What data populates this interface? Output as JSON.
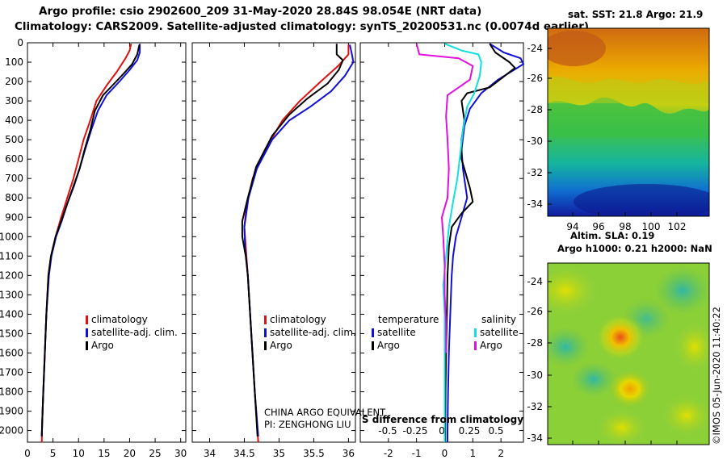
{
  "title_line1": "Argo profile: csio 2902600_209 31-May-2020 28.84S 98.054E (NRT data)",
  "title_line2": "Climatology: CARS2009. Satellite-adjusted climatology: synTS_20200531.nc (0.0074d earlier)",
  "sat_sst_title": "sat. SST: 21.8 Argo: 21.9",
  "altim_title_line1": "Altim. SLA: 0.19",
  "altim_title_line2": "Argo h1000: 0.21 h2000: NaN",
  "credit_line1": "CHINA ARGO EQUIVALENT",
  "credit_line2": "PI: ZENGHONG LIU",
  "stamp": "©IMOS 05-Jun-2020 11:40:22",
  "colors": {
    "climatology": "#e01010",
    "satellite": "#1010d8",
    "argo": "#000000",
    "sat_salinity": "#10e0e0",
    "argo_salinity": "#e010e0"
  },
  "depth_ticks": [
    "0",
    "100",
    "200",
    "300",
    "400",
    "500",
    "600",
    "700",
    "800",
    "900",
    "1000",
    "1100",
    "1200",
    "1300",
    "1400",
    "1500",
    "1600",
    "1700",
    "1800",
    "1900",
    "2000"
  ],
  "chart_data": [
    {
      "type": "line",
      "panel": "temperature",
      "x_ticks": [
        "0",
        "5",
        "10",
        "15",
        "20",
        "25",
        "30"
      ],
      "xlim": [
        0,
        31
      ],
      "ylim": [
        2060,
        0
      ],
      "legend": [
        "climatology",
        "satellite-adj. clim.",
        "Argo"
      ],
      "series": [
        {
          "name": "climatology",
          "color": "#e01010",
          "points": [
            [
              20.3,
              5
            ],
            [
              20,
              40
            ],
            [
              19.2,
              80
            ],
            [
              17.5,
              150
            ],
            [
              15.5,
              220
            ],
            [
              13.5,
              300
            ],
            [
              12.3,
              400
            ],
            [
              11,
              500
            ],
            [
              10,
              600
            ],
            [
              9,
              700
            ],
            [
              7.8,
              800
            ],
            [
              6.6,
              900
            ],
            [
              5.5,
              1000
            ],
            [
              4.6,
              1100
            ],
            [
              4.1,
              1200
            ],
            [
              3.7,
              1400
            ],
            [
              3.4,
              1600
            ],
            [
              3.1,
              1800
            ],
            [
              2.9,
              1950
            ],
            [
              2.8,
              2060
            ]
          ]
        },
        {
          "name": "satellite-adj. clim.",
          "color": "#1010d8",
          "points": [
            [
              22,
              5
            ],
            [
              22,
              50
            ],
            [
              21.5,
              90
            ],
            [
              20,
              140
            ],
            [
              18,
              200
            ],
            [
              15.5,
              270
            ],
            [
              13.8,
              350
            ],
            [
              12.5,
              450
            ],
            [
              11.3,
              550
            ],
            [
              10.2,
              650
            ],
            [
              9.1,
              740
            ],
            [
              7.8,
              830
            ],
            [
              6.7,
              920
            ],
            [
              5.6,
              1000
            ],
            [
              4.7,
              1100
            ],
            [
              4.2,
              1200
            ],
            [
              3.7,
              1400
            ],
            [
              3.4,
              1600
            ],
            [
              3.1,
              1800
            ],
            [
              2.9,
              1950
            ],
            [
              2.8,
              2030
            ]
          ]
        },
        {
          "name": "Argo",
          "color": "#000000",
          "points": [
            [
              21.9,
              10
            ],
            [
              21.5,
              60
            ],
            [
              20.5,
              110
            ],
            [
              18.8,
              160
            ],
            [
              17,
              210
            ],
            [
              14.8,
              270
            ],
            [
              13.2,
              350
            ],
            [
              12.3,
              450
            ],
            [
              11.2,
              550
            ],
            [
              10.2,
              650
            ],
            [
              9,
              740
            ],
            [
              7.8,
              830
            ],
            [
              6.6,
              920
            ],
            [
              5.5,
              1000
            ],
            [
              4.6,
              1100
            ],
            [
              4.1,
              1200
            ],
            [
              3.7,
              1400
            ],
            [
              3.4,
              1600
            ],
            [
              3.1,
              1800
            ],
            [
              2.9,
              1950
            ],
            [
              2.8,
              2030
            ]
          ]
        }
      ]
    },
    {
      "type": "line",
      "panel": "salinity",
      "x_ticks": [
        "34",
        "34.5",
        "35",
        "35.5",
        "36"
      ],
      "xlim": [
        33.75,
        36.1
      ],
      "ylim": [
        2060,
        0
      ],
      "legend": [
        "climatology",
        "satellite-adj. clim.",
        "Argo"
      ],
      "series": [
        {
          "name": "climatology",
          "color": "#e01010",
          "points": [
            [
              36.0,
              10
            ],
            [
              36.0,
              60
            ],
            [
              35.85,
              120
            ],
            [
              35.6,
              200
            ],
            [
              35.3,
              300
            ],
            [
              35.05,
              400
            ],
            [
              34.8,
              550
            ],
            [
              34.62,
              700
            ],
            [
              34.53,
              850
            ],
            [
              34.5,
              950
            ],
            [
              34.52,
              1050
            ],
            [
              34.55,
              1200
            ],
            [
              34.6,
              1500
            ],
            [
              34.65,
              1800
            ],
            [
              34.7,
              2060
            ]
          ]
        },
        {
          "name": "satellite-adj. clim.",
          "color": "#1010d8",
          "points": [
            [
              36.02,
              10
            ],
            [
              36.05,
              60
            ],
            [
              36.07,
              100
            ],
            [
              35.95,
              170
            ],
            [
              35.75,
              250
            ],
            [
              35.45,
              330
            ],
            [
              35.15,
              400
            ],
            [
              34.9,
              500
            ],
            [
              34.68,
              650
            ],
            [
              34.56,
              800
            ],
            [
              34.5,
              950
            ],
            [
              34.51,
              1050
            ],
            [
              34.55,
              1200
            ],
            [
              34.6,
              1500
            ],
            [
              34.65,
              1800
            ],
            [
              34.7,
              2030
            ]
          ]
        },
        {
          "name": "Argo",
          "color": "#000000",
          "points": [
            [
              35.83,
              5
            ],
            [
              35.83,
              60
            ],
            [
              35.92,
              90
            ],
            [
              35.86,
              140
            ],
            [
              35.7,
              210
            ],
            [
              35.4,
              290
            ],
            [
              35.15,
              370
            ],
            [
              34.9,
              480
            ],
            [
              34.67,
              640
            ],
            [
              34.55,
              800
            ],
            [
              34.47,
              920
            ],
            [
              34.47,
              1000
            ],
            [
              34.52,
              1100
            ],
            [
              34.55,
              1200
            ],
            [
              34.6,
              1500
            ],
            [
              34.65,
              1800
            ],
            [
              34.69,
              2030
            ]
          ]
        }
      ]
    },
    {
      "type": "line",
      "panel": "difference",
      "x_ticks": [
        "-2",
        "-1",
        "0",
        "1",
        "2"
      ],
      "x_ticks_salinity": [
        "-0.5",
        "-0.25",
        "0",
        "0.25",
        "0.5"
      ],
      "xlabel": "S difference from climatology",
      "xlim": [
        -3,
        2.8
      ],
      "ylim": [
        2060,
        0
      ],
      "legend_groups": [
        {
          "heading": "temperature",
          "items": [
            "satellite",
            "Argo"
          ]
        },
        {
          "heading": "salinity",
          "items": [
            "satellite",
            "Argo"
          ]
        }
      ],
      "series": [
        {
          "name": "temperature satellite",
          "color": "#1010d8",
          "points": [
            [
              1.6,
              5
            ],
            [
              2.1,
              50
            ],
            [
              2.7,
              80
            ],
            [
              2.8,
              110
            ],
            [
              1.9,
              190
            ],
            [
              1.3,
              260
            ],
            [
              0.9,
              340
            ],
            [
              0.7,
              430
            ],
            [
              0.6,
              550
            ],
            [
              0.65,
              650
            ],
            [
              0.8,
              800
            ],
            [
              0.6,
              900
            ],
            [
              0.4,
              1000
            ],
            [
              0.3,
              1100
            ],
            [
              0.25,
              1200
            ],
            [
              0.2,
              1400
            ],
            [
              0.15,
              1600
            ],
            [
              0.12,
              1800
            ],
            [
              0.1,
              2000
            ],
            [
              0.1,
              2060
            ]
          ]
        },
        {
          "name": "temperature Argo",
          "color": "#000000",
          "points": [
            [
              1.6,
              5
            ],
            [
              1.8,
              50
            ],
            [
              2.3,
              100
            ],
            [
              2.5,
              130
            ],
            [
              1.6,
              230
            ],
            [
              0.8,
              260
            ],
            [
              0.6,
              300
            ],
            [
              0.7,
              400
            ],
            [
              0.6,
              500
            ],
            [
              0.6,
              600
            ],
            [
              0.9,
              750
            ],
            [
              1.0,
              820
            ],
            [
              0.6,
              880
            ],
            [
              0.25,
              950
            ],
            [
              0.15,
              1050
            ],
            [
              0.1,
              1200
            ],
            [
              0.08,
              1400
            ],
            [
              0.05,
              1600
            ],
            [
              0.03,
              1800
            ],
            [
              0.02,
              2000
            ],
            [
              0.02,
              2060
            ]
          ]
        },
        {
          "name": "salinity satellite",
          "color": "#10e0e0",
          "points": [
            [
              0,
              5
            ],
            [
              0.6,
              40
            ],
            [
              1.2,
              60
            ],
            [
              1.3,
              100
            ],
            [
              1.25,
              170
            ],
            [
              1.05,
              260
            ],
            [
              0.8,
              330
            ],
            [
              0.65,
              450
            ],
            [
              0.55,
              580
            ],
            [
              0.45,
              700
            ],
            [
              0.3,
              820
            ],
            [
              0.15,
              950
            ],
            [
              0.05,
              1100
            ],
            [
              -0.05,
              1250
            ],
            [
              0,
              1400
            ],
            [
              0,
              1600
            ],
            [
              0,
              1800
            ],
            [
              0,
              2000
            ],
            [
              0,
              2060
            ]
          ]
        },
        {
          "name": "salinity Argo",
          "color": "#e010e0",
          "points": [
            [
              -1.0,
              5
            ],
            [
              -0.9,
              60
            ],
            [
              0.5,
              80
            ],
            [
              1.0,
              120
            ],
            [
              0.9,
              190
            ],
            [
              0.1,
              270
            ],
            [
              0.05,
              380
            ],
            [
              0.1,
              500
            ],
            [
              0.15,
              650
            ],
            [
              0.1,
              800
            ],
            [
              -0.1,
              900
            ],
            [
              -0.05,
              1000
            ],
            [
              0,
              1150
            ],
            [
              0,
              1300
            ],
            [
              0.05,
              1450
            ],
            [
              0.05,
              1600
            ]
          ]
        }
      ]
    },
    {
      "type": "heatmap",
      "panel": "satellite SST map",
      "x_ticks": [
        "94",
        "96",
        "98",
        "100",
        "102"
      ],
      "y_ticks": [
        "-24",
        "-26",
        "-28",
        "-30",
        "-32",
        "-34"
      ]
    },
    {
      "type": "heatmap",
      "panel": "altimetry SLA map",
      "y_ticks": [
        "-24",
        "-26",
        "-28",
        "-30",
        "-32",
        "-34"
      ]
    }
  ]
}
